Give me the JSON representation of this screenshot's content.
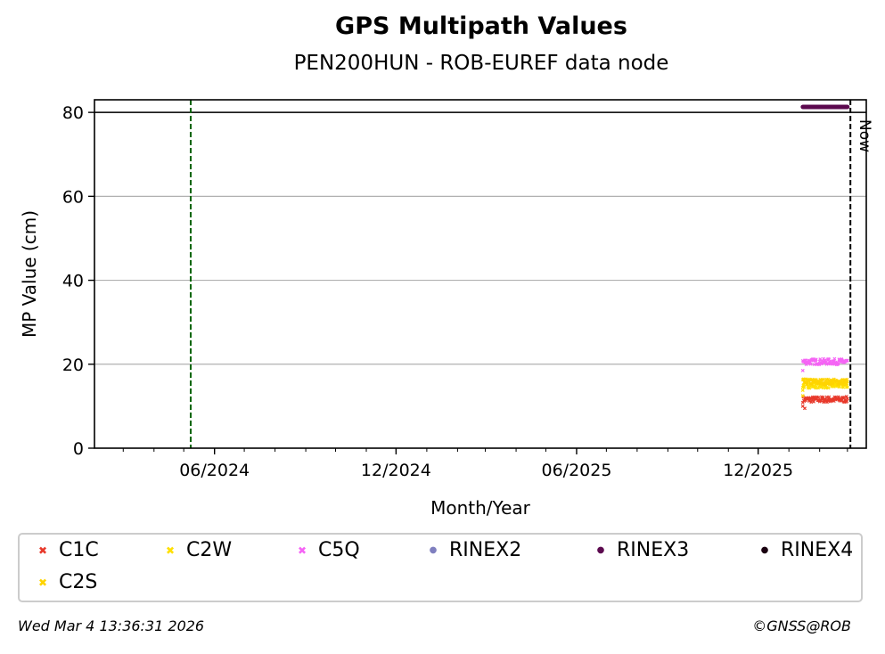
{
  "chart_data": {
    "type": "scatter",
    "title": "GPS Multipath Values",
    "subtitle": "PEN200HUN - ROB-EUREF data node",
    "xlabel": "Month/Year",
    "ylabel": "MP Value (cm)",
    "xlim": [
      "2024-02-01",
      "2026-03-20"
    ],
    "ylim": [
      0,
      83
    ],
    "x_ticks": [
      "2024-06-01",
      "2024-12-01",
      "2025-06-01",
      "2025-12-01"
    ],
    "x_tick_labels": [
      "06/2024",
      "12/2024",
      "06/2025",
      "12/2025"
    ],
    "y_ticks": [
      0,
      20,
      40,
      60,
      80
    ],
    "y_tick_labels": [
      "0",
      "20",
      "40",
      "60",
      "80"
    ],
    "grid": "y-major",
    "legend_placement": "below",
    "reference_lines": [
      {
        "type": "horizontal",
        "y": 80,
        "color": "#000000",
        "style": "solid"
      },
      {
        "type": "vertical",
        "x": "2024-05-08",
        "color": "#006400",
        "style": "dashed"
      },
      {
        "type": "vertical",
        "x": "2026-03-04",
        "color": "#000000",
        "style": "dashed",
        "label": "Now"
      }
    ],
    "series": [
      {
        "name": "C1C",
        "marker": "x",
        "color": "#e8392b",
        "x_range": [
          "2026-01-15",
          "2026-03-01"
        ],
        "approx_value": 11.6,
        "outliers": [
          {
            "x": "2026-01-15",
            "y": 10.0
          },
          {
            "x": "2026-01-17",
            "y": 9.5
          }
        ]
      },
      {
        "name": "C2W",
        "marker": "x",
        "color": "#ffe000",
        "x_range": [
          "2026-01-15",
          "2026-03-01"
        ],
        "approx_value": 15.0,
        "outliers": [
          {
            "x": "2026-01-15",
            "y": 13.8
          }
        ]
      },
      {
        "name": "C5Q",
        "marker": "x",
        "color": "#f564f5",
        "x_range": [
          "2026-01-15",
          "2026-03-01"
        ],
        "approx_value": 20.6,
        "outliers": [
          {
            "x": "2026-01-15",
            "y": 18.5
          }
        ]
      },
      {
        "name": "RINEX2",
        "marker": "dot",
        "color": "#7f7fbf",
        "x_range": null,
        "approx_value": null
      },
      {
        "name": "RINEX3",
        "marker": "dot",
        "color": "#5c0a4f",
        "x_range": [
          "2026-01-15",
          "2026-03-01"
        ],
        "approx_value": 81.3
      },
      {
        "name": "RINEX4",
        "marker": "dot",
        "color": "#1a0010",
        "x_range": null,
        "approx_value": null
      },
      {
        "name": "C2S",
        "marker": "x",
        "color": "#ffd400",
        "x_range": [
          "2026-01-15",
          "2026-03-01"
        ],
        "approx_value": 15.8,
        "outliers": [
          {
            "x": "2026-01-15",
            "y": 12.5
          }
        ]
      }
    ]
  },
  "footer": {
    "timestamp": "Wed Mar  4 13:36:31 2026",
    "credit": "©GNSS@ROB"
  }
}
